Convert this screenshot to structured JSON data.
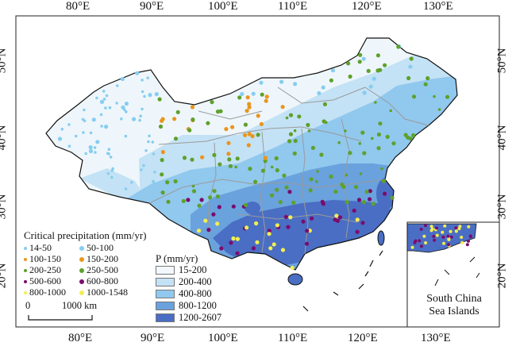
{
  "map": {
    "lon_labels": [
      "80°E",
      "90°E",
      "100°E",
      "110°E",
      "120°E",
      "130°E"
    ],
    "lat_labels": [
      "50°N",
      "40°N",
      "30°N",
      "20°N"
    ],
    "inset_label_line1": "South China",
    "inset_label_line2": "Sea Islands",
    "scale_bar": {
      "zero": "0",
      "length": "1000 km"
    }
  },
  "station_legend": {
    "title": "Critical precipitation (mm/yr)",
    "classes": [
      {
        "label": "14-50",
        "color": "#87cdf0",
        "size": 2
      },
      {
        "label": "50-100",
        "color": "#87cdf0",
        "size": 3
      },
      {
        "label": "100-150",
        "color": "#e8961e",
        "size": 2
      },
      {
        "label": "150-200",
        "color": "#e8961e",
        "size": 3
      },
      {
        "label": "200-250",
        "color": "#5ea12b",
        "size": 2
      },
      {
        "label": "250-500",
        "color": "#5ea12b",
        "size": 3
      },
      {
        "label": "500-600",
        "color": "#7a0c6e",
        "size": 2
      },
      {
        "label": "600-800",
        "color": "#7a0c6e",
        "size": 3
      },
      {
        "label": "800-1000",
        "color": "#f2ef52",
        "size": 2
      },
      {
        "label": "1000-1548",
        "color": "#f2ef52",
        "size": 3
      }
    ]
  },
  "precip_legend": {
    "title": "P (mm/yr)",
    "classes": [
      {
        "label": "15-200",
        "color": "#f2f8fc"
      },
      {
        "label": "200-400",
        "color": "#c4e2f5"
      },
      {
        "label": "400-800",
        "color": "#91c8ee"
      },
      {
        "label": "800-1200",
        "color": "#6aa2dd"
      },
      {
        "label": "1200-2607",
        "color": "#4a6ec4"
      }
    ]
  }
}
